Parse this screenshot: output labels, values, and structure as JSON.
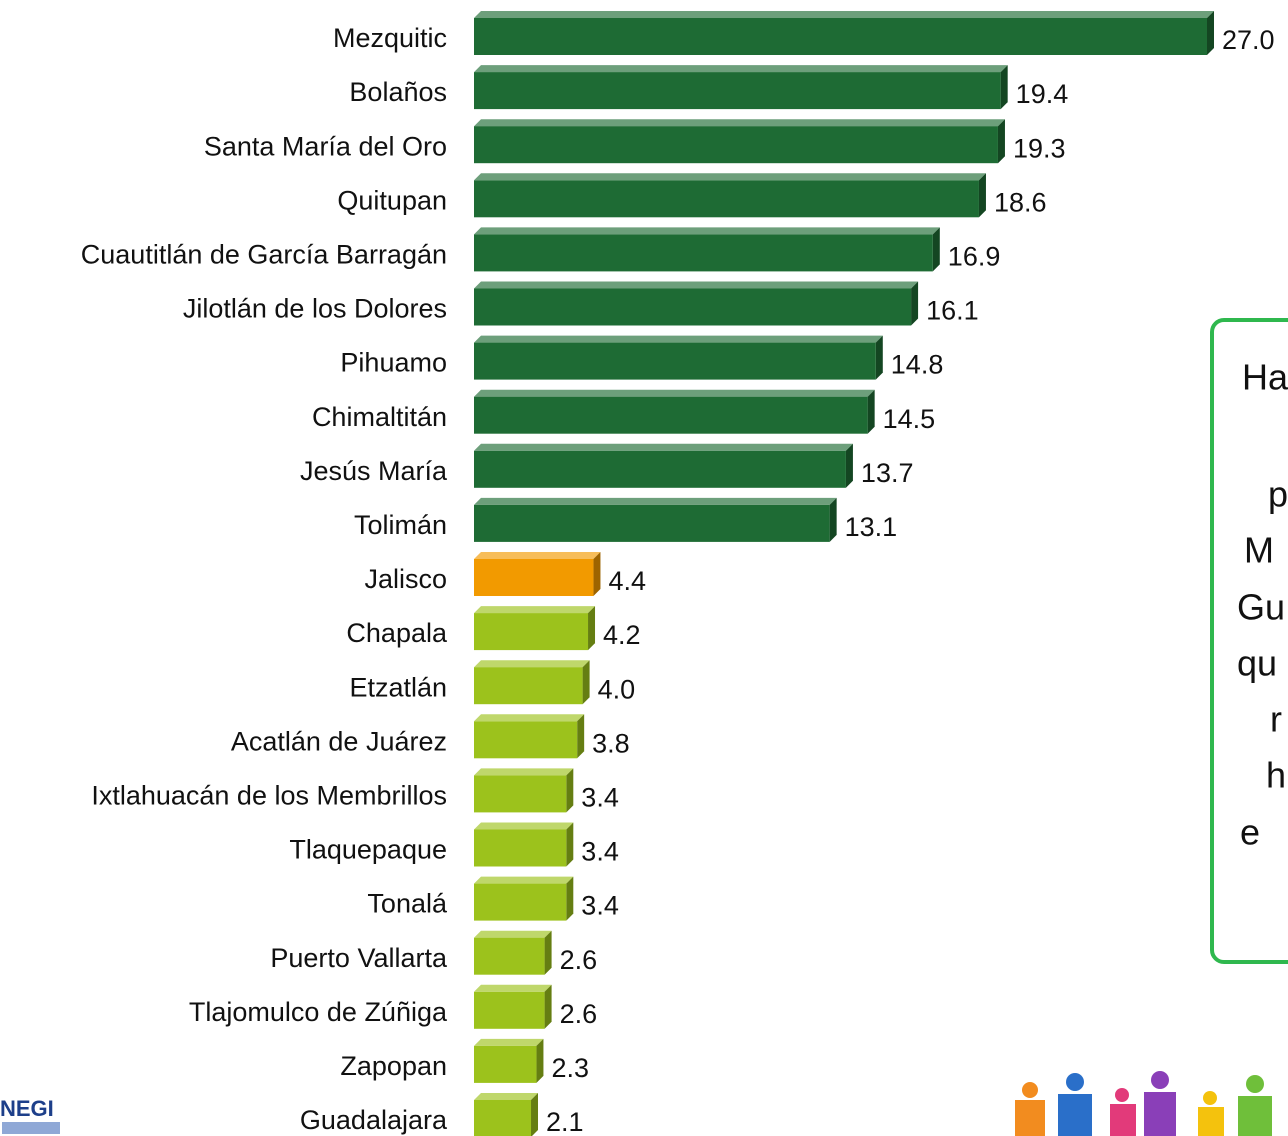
{
  "chart_data": {
    "type": "bar",
    "orientation": "horizontal",
    "categories": [
      "Mezquitic",
      "Bolaños",
      "Santa María del Oro",
      "Quitupan",
      "Cuautitlán de García Barragán",
      "Jilotlán de los Dolores",
      "Pihuamo",
      "Chimaltitán",
      "Jesús María",
      "Tolimán",
      "Jalisco",
      "Chapala",
      "Etzatlán",
      "Acatlán de Juárez",
      "Ixtlahuacán de los Membrillos",
      "Tlaquepaque",
      "Tonalá",
      "Puerto Vallarta",
      "Tlajomulco de Zúñiga",
      "Zapopan",
      "Guadalajara"
    ],
    "values": [
      27.0,
      19.4,
      19.3,
      18.6,
      16.9,
      16.1,
      14.8,
      14.5,
      13.7,
      13.1,
      4.4,
      4.2,
      4.0,
      3.8,
      3.4,
      3.4,
      3.4,
      2.6,
      2.6,
      2.3,
      2.1
    ],
    "value_labels": [
      "27.0",
      "19.4",
      "19.3",
      "18.6",
      "16.9",
      "16.1",
      "14.8",
      "14.5",
      "13.7",
      "13.1",
      "4.4",
      "4.2",
      "4.0",
      "3.8",
      "3.4",
      "3.4",
      "3.4",
      "2.6",
      "2.6",
      "2.3",
      "2.1"
    ],
    "colors": [
      "#1e6b34",
      "#1e6b34",
      "#1e6b34",
      "#1e6b34",
      "#1e6b34",
      "#1e6b34",
      "#1e6b34",
      "#1e6b34",
      "#1e6b34",
      "#1e6b34",
      "#f29a00",
      "#9cc21c",
      "#9cc21c",
      "#9cc21c",
      "#9cc21c",
      "#9cc21c",
      "#9cc21c",
      "#9cc21c",
      "#9cc21c",
      "#9cc21c",
      "#9cc21c"
    ]
  },
  "note_box": {
    "lines": [
      "Ha",
      "p",
      "M",
      "Gu",
      "qu",
      "r",
      "h",
      "e"
    ]
  },
  "logo": "NEGI"
}
